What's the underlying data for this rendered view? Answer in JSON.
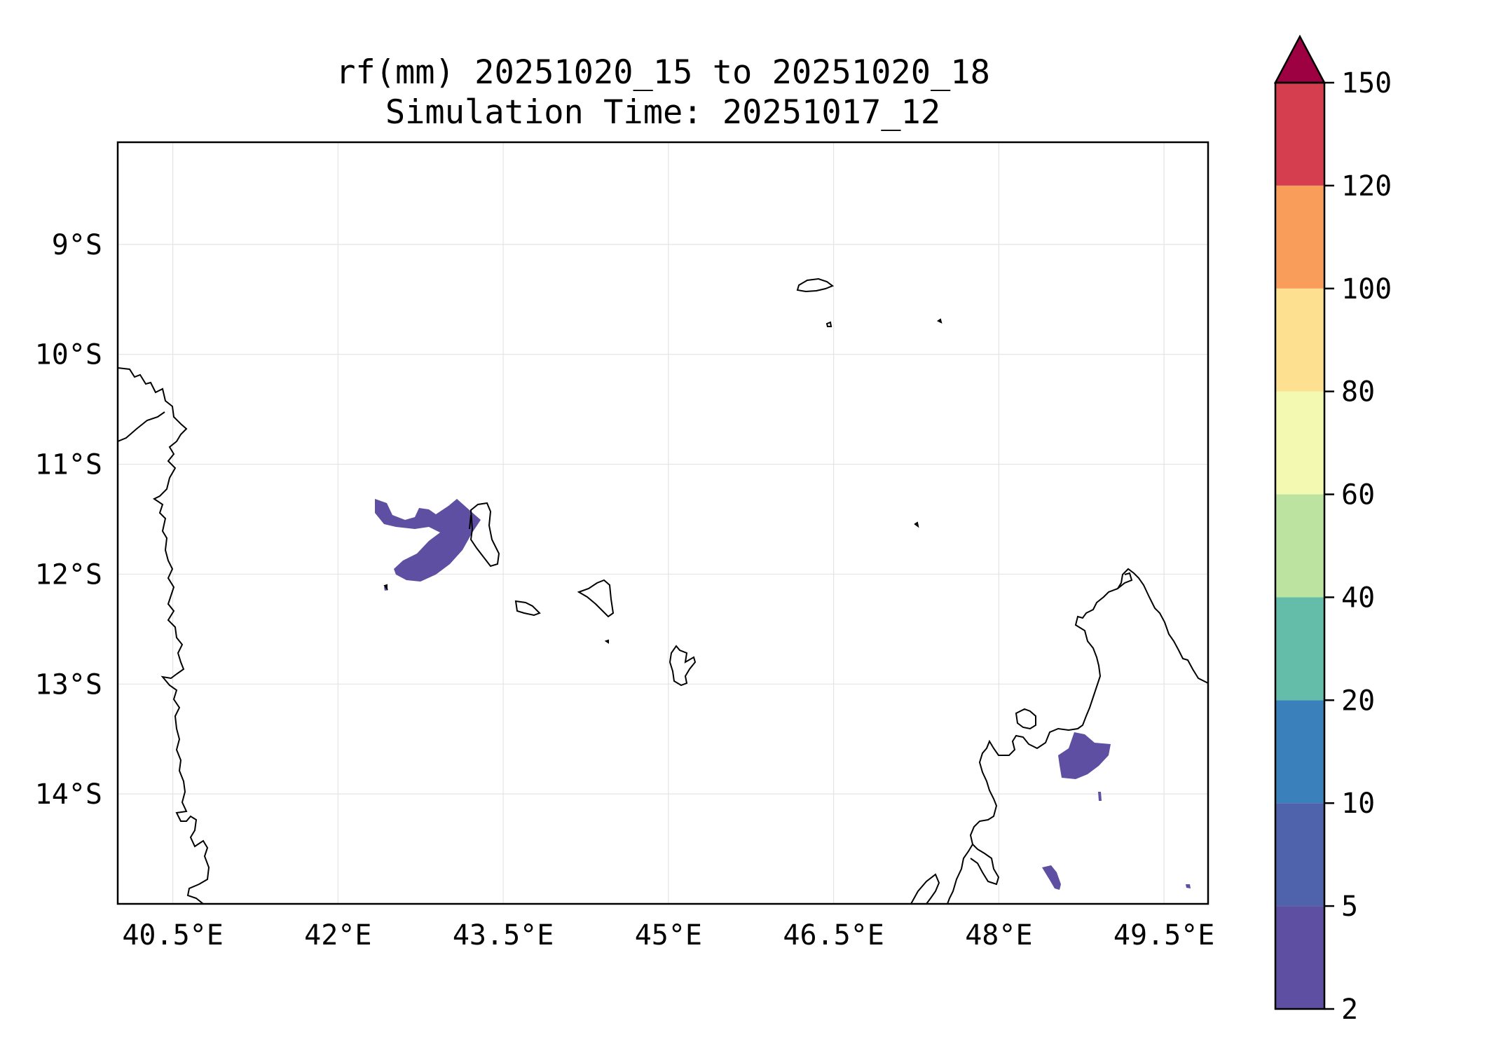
{
  "map": {
    "title": "rf(mm) 20251020_15 to 20251020_18",
    "subtitle": "Simulation Time: 20251017_12",
    "x_ticks": [
      {
        "value": 40.5,
        "label": "40.5°E"
      },
      {
        "value": 42.0,
        "label": "42°E"
      },
      {
        "value": 43.5,
        "label": "43.5°E"
      },
      {
        "value": 45.0,
        "label": "45°E"
      },
      {
        "value": 46.5,
        "label": "46.5°E"
      },
      {
        "value": 48.0,
        "label": "48°E"
      },
      {
        "value": 49.5,
        "label": "49.5°E"
      }
    ],
    "y_ticks": [
      {
        "value": -9,
        "label": "9°S"
      },
      {
        "value": -10,
        "label": "10°S"
      },
      {
        "value": -11,
        "label": "11°S"
      },
      {
        "value": -12,
        "label": "12°S"
      },
      {
        "value": -13,
        "label": "13°S"
      },
      {
        "value": -14,
        "label": "14°S"
      }
    ],
    "lon_range": [
      40.0,
      49.9
    ],
    "lat_range": [
      -15.0,
      -8.07
    ],
    "grid": true
  },
  "colorbar": {
    "levels": [
      {
        "value": 2,
        "label": "2"
      },
      {
        "value": 5,
        "label": "5"
      },
      {
        "value": 10,
        "label": "10"
      },
      {
        "value": 20,
        "label": "20"
      },
      {
        "value": 40,
        "label": "40"
      },
      {
        "value": 60,
        "label": "60"
      },
      {
        "value": 80,
        "label": "80"
      },
      {
        "value": 100,
        "label": "100"
      },
      {
        "value": 120,
        "label": "120"
      },
      {
        "value": 150,
        "label": "150"
      }
    ],
    "colors": [
      "#5e4fa2",
      "#4e63ab",
      "#3a80ba",
      "#63bda9",
      "#bce4a0",
      "#f3f9b0",
      "#fde090",
      "#f99e5a",
      "#d53e4f"
    ],
    "extend_color": "#9e0142"
  }
}
